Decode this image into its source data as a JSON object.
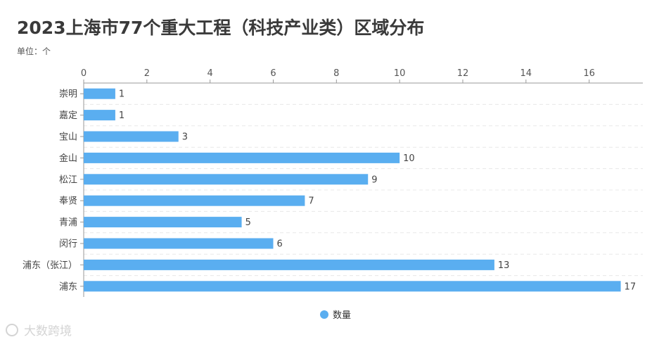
{
  "colors": {
    "bar": "#5aaef0",
    "axis": "#999999",
    "grid": "#e8e8e8"
  },
  "watermark": {
    "text": "大数跨境"
  },
  "chart_data": {
    "type": "bar",
    "orientation": "horizontal",
    "title": "2023上海市77个重大工程（科技产业类）区域分布",
    "subtitle": "单位：个",
    "categories": [
      "崇明",
      "嘉定",
      "宝山",
      "金山",
      "松江",
      "奉贤",
      "青浦",
      "闵行",
      "浦东（张江）",
      "浦东"
    ],
    "series": [
      {
        "name": "数量",
        "values": [
          1,
          1,
          3,
          10,
          9,
          7,
          5,
          6,
          13,
          17
        ]
      }
    ],
    "x_ticks": [
      0,
      2,
      4,
      6,
      8,
      10,
      12,
      14,
      16
    ],
    "xlim": [
      0,
      17.7
    ],
    "x_axis_position": "top",
    "grid": "horizontal-dashed",
    "legend_position": "bottom-center"
  }
}
